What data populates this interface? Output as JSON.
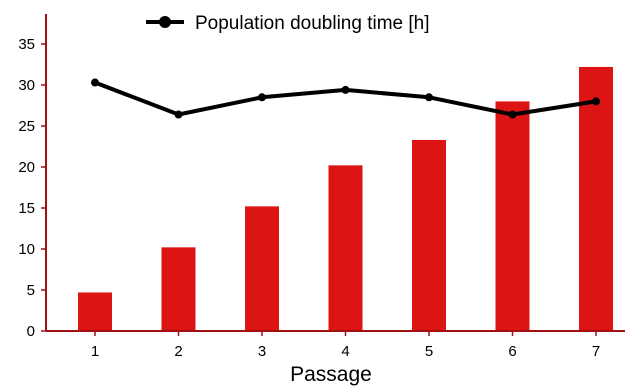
{
  "chart_data": {
    "type": "bar",
    "title": "",
    "xlabel": "Passage",
    "ylabel": "",
    "categories": [
      "1",
      "2",
      "3",
      "4",
      "5",
      "6",
      "7"
    ],
    "ylim": [
      0,
      38
    ],
    "yticks": [
      0,
      5,
      10,
      15,
      20,
      25,
      30,
      35
    ],
    "grid": false,
    "legend_position": "top",
    "series": [
      {
        "type": "bar",
        "values": [
          4.7,
          10.2,
          15.2,
          20.2,
          23.3,
          28.0,
          32.2
        ],
        "color": "#dc1414"
      },
      {
        "type": "line",
        "name": "Population doubling time [h]",
        "values": [
          30.3,
          26.4,
          28.5,
          29.4,
          28.5,
          26.4,
          28.0
        ],
        "color": "#000000"
      }
    ],
    "axis_color": "#a01010"
  }
}
